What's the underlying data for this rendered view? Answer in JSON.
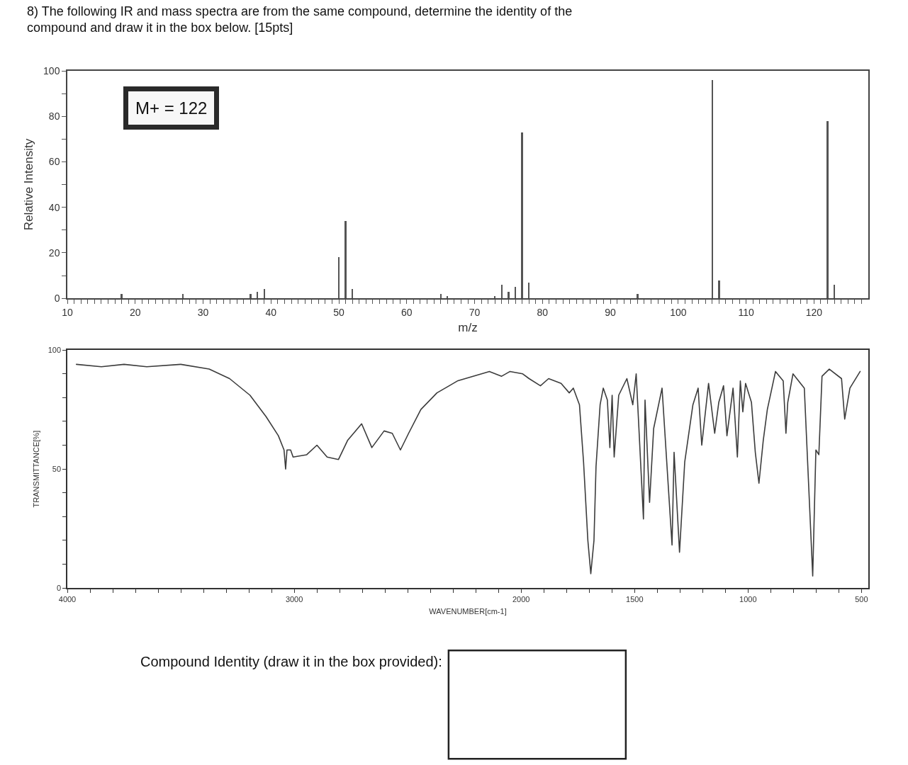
{
  "chart_data": [
    {
      "type": "bar",
      "title": "8) The following IR and mass spectra are from the same compound, determine the identity of the compound and draw it in the box below. [15pts]",
      "xlabel": "m/z",
      "ylabel": "Relative Intensity",
      "annotations": [
        "M+ = 122"
      ],
      "color": "#555555",
      "x": [
        18,
        27,
        37,
        38,
        39,
        50,
        51,
        52,
        65,
        66,
        73,
        74,
        75,
        76,
        77,
        78,
        94,
        105,
        106,
        122,
        123
      ],
      "values": [
        2,
        2,
        2,
        3,
        4,
        18,
        34,
        4,
        2,
        1,
        1,
        6,
        3,
        5,
        73,
        7,
        2,
        96,
        8,
        78,
        6
      ],
      "xlim": [
        10,
        128
      ],
      "xticks": [
        10,
        {
          "value": 11,
          "label": null
        },
        {
          "value": 12,
          "label": null
        },
        {
          "value": 13,
          "label": null
        },
        {
          "value": 14,
          "label": null
        },
        {
          "value": 15,
          "label": null
        },
        {
          "value": 16,
          "label": null
        },
        {
          "value": 17,
          "label": null
        },
        {
          "value": 18,
          "label": null
        },
        {
          "value": 19,
          "label": null
        },
        20,
        {
          "value": 21,
          "label": null
        },
        {
          "value": 22,
          "label": null
        },
        {
          "value": 23,
          "label": null
        },
        {
          "value": 24,
          "label": null
        },
        {
          "value": 25,
          "label": null
        },
        {
          "value": 26,
          "label": null
        },
        {
          "value": 27,
          "label": null
        },
        {
          "value": 28,
          "label": null
        },
        {
          "value": 29,
          "label": null
        },
        30,
        {
          "value": 31,
          "label": null
        },
        {
          "value": 32,
          "label": null
        },
        {
          "value": 33,
          "label": null
        },
        {
          "value": 34,
          "label": null
        },
        {
          "value": 35,
          "label": null
        },
        {
          "value": 36,
          "label": null
        },
        {
          "value": 37,
          "label": null
        },
        {
          "value": 38,
          "label": null
        },
        {
          "value": 39,
          "label": null
        },
        40,
        {
          "value": 41,
          "label": null
        },
        {
          "value": 42,
          "label": null
        },
        {
          "value": 43,
          "label": null
        },
        {
          "value": 44,
          "label": null
        },
        {
          "value": 45,
          "label": null
        },
        {
          "value": 46,
          "label": null
        },
        {
          "value": 47,
          "label": null
        },
        {
          "value": 48,
          "label": null
        },
        {
          "value": 49,
          "label": null
        },
        50,
        {
          "value": 51,
          "label": null
        },
        {
          "value": 52,
          "label": null
        },
        {
          "value": 53,
          "label": null
        },
        {
          "value": 54,
          "label": null
        },
        {
          "value": 55,
          "label": null
        },
        {
          "value": 56,
          "label": null
        },
        {
          "value": 57,
          "label": null
        },
        {
          "value": 58,
          "label": null
        },
        {
          "value": 59,
          "label": null
        },
        60,
        {
          "value": 61,
          "label": null
        },
        {
          "value": 62,
          "label": null
        },
        {
          "value": 63,
          "label": null
        },
        {
          "value": 64,
          "label": null
        },
        {
          "value": 65,
          "label": null
        },
        {
          "value": 66,
          "label": null
        },
        {
          "value": 67,
          "label": null
        },
        {
          "value": 68,
          "label": null
        },
        {
          "value": 69,
          "label": null
        },
        70,
        {
          "value": 71,
          "label": null
        },
        {
          "value": 72,
          "label": null
        },
        {
          "value": 73,
          "label": null
        },
        {
          "value": 74,
          "label": null
        },
        {
          "value": 75,
          "label": null
        },
        {
          "value": 76,
          "label": null
        },
        {
          "value": 77,
          "label": null
        },
        {
          "value": 78,
          "label": null
        },
        {
          "value": 79,
          "label": null
        },
        80,
        {
          "value": 81,
          "label": null
        },
        {
          "value": 82,
          "label": null
        },
        {
          "value": 83,
          "label": null
        },
        {
          "value": 84,
          "label": null
        },
        {
          "value": 85,
          "label": null
        },
        {
          "value": 86,
          "label": null
        },
        {
          "value": 87,
          "label": null
        },
        {
          "value": 88,
          "label": null
        },
        {
          "value": 89,
          "label": null
        },
        90,
        {
          "value": 91,
          "label": null
        },
        {
          "value": 92,
          "label": null
        },
        {
          "value": 93,
          "label": null
        },
        {
          "value": 94,
          "label": null
        },
        {
          "value": 95,
          "label": null
        },
        {
          "value": 96,
          "label": null
        },
        {
          "value": 97,
          "label": null
        },
        {
          "value": 98,
          "label": null
        },
        {
          "value": 99,
          "label": null
        },
        100,
        {
          "value": 101,
          "label": null
        },
        {
          "value": 102,
          "label": null
        },
        {
          "value": 103,
          "label": null
        },
        {
          "value": 104,
          "label": null
        },
        {
          "value": 105,
          "label": null
        },
        {
          "value": 106,
          "label": null
        },
        {
          "value": 107,
          "label": null
        },
        {
          "value": 108,
          "label": null
        },
        {
          "value": 109,
          "label": null
        },
        110,
        {
          "value": 111,
          "label": null
        },
        {
          "value": 112,
          "label": null
        },
        {
          "value": 113,
          "label": null
        },
        {
          "value": 114,
          "label": null
        },
        {
          "value": 115,
          "label": null
        },
        {
          "value": 116,
          "label": null
        },
        {
          "value": 117,
          "label": null
        },
        {
          "value": 118,
          "label": null
        },
        {
          "value": 119,
          "label": null
        },
        120,
        {
          "value": 121,
          "label": null
        },
        {
          "value": 122,
          "label": null
        },
        {
          "value": 123,
          "label": null
        },
        {
          "value": 124,
          "label": null
        },
        {
          "value": 125,
          "label": null
        },
        {
          "value": 126,
          "label": null
        },
        {
          "value": 127,
          "label": null
        }
      ],
      "ylim": [
        0,
        100
      ],
      "yticks": [
        0,
        {
          "value": 10,
          "label": null
        },
        20,
        {
          "value": 30,
          "label": null
        },
        40,
        {
          "value": 50,
          "label": null
        },
        60,
        {
          "value": 70,
          "label": null
        },
        80,
        {
          "value": 90,
          "label": null
        },
        100
      ]
    },
    {
      "type": "line",
      "xlabel": "WAVENUMBER[cm-1]",
      "ylabel": "TRANSMITTANCE[%]",
      "annotations": [
        "Compound Identity (draw it in the box provided):"
      ],
      "color": "#3c3c3c",
      "x": [
        3960,
        3850,
        3750,
        3650,
        3500,
        3375,
        3285,
        3195,
        3124,
        3070,
        3045,
        3038,
        3032,
        3016,
        3005,
        2945,
        2900,
        2855,
        2805,
        2765,
        2703,
        2658,
        2604,
        2568,
        2532,
        2496,
        2442,
        2371,
        2317,
        2281,
        2140,
        2086,
        2049,
        1993,
        1965,
        1915,
        1879,
        1824,
        1788,
        1770,
        1743,
        1725,
        1706,
        1693,
        1679,
        1670,
        1652,
        1638,
        1620,
        1609,
        1599,
        1590,
        1570,
        1534,
        1508,
        1493,
        1461,
        1454,
        1434,
        1416,
        1379,
        1335,
        1326,
        1302,
        1279,
        1243,
        1220,
        1204,
        1174,
        1147,
        1129,
        1108,
        1093,
        1066,
        1047,
        1034,
        1023,
        1011,
        985,
        968,
        952,
        933,
        915,
        879,
        845,
        833,
        825,
        802,
        752,
        715,
        701,
        688,
        674,
        642,
        588,
        574,
        551,
        506
      ],
      "values": [
        94,
        93,
        94,
        93,
        94,
        92,
        88,
        81,
        72,
        64,
        58,
        50,
        58,
        58,
        55,
        56,
        60,
        55,
        54,
        62,
        69,
        59,
        66,
        65,
        58,
        65,
        75,
        82,
        85,
        87,
        91,
        89,
        91,
        90,
        88,
        85,
        88,
        86,
        82,
        84,
        77,
        53,
        20,
        6,
        20,
        51,
        77,
        84,
        79,
        59,
        81,
        55,
        81,
        88,
        77,
        90,
        29,
        79,
        36,
        67,
        84,
        18,
        57,
        15,
        53,
        77,
        84,
        60,
        86,
        65,
        78,
        85,
        64,
        84,
        55,
        87,
        74,
        86,
        78,
        57,
        44,
        62,
        75,
        91,
        87,
        65,
        78,
        90,
        84,
        5,
        58,
        56,
        89,
        92,
        88,
        71,
        84,
        91
      ],
      "xlim": [
        4000,
        470
      ],
      "xticks": [
        4000,
        {
          "value": 3900,
          "label": null
        },
        {
          "value": 3800,
          "label": null
        },
        {
          "value": 3700,
          "label": null
        },
        {
          "value": 3600,
          "label": null
        },
        {
          "value": 3500,
          "label": null
        },
        {
          "value": 3400,
          "label": null
        },
        {
          "value": 3300,
          "label": null
        },
        {
          "value": 3200,
          "label": null
        },
        {
          "value": 3100,
          "label": null
        },
        3000,
        {
          "value": 2900,
          "label": null
        },
        {
          "value": 2800,
          "label": null
        },
        {
          "value": 2700,
          "label": null
        },
        {
          "value": 2600,
          "label": null
        },
        {
          "value": 2500,
          "label": null
        },
        {
          "value": 2400,
          "label": null
        },
        {
          "value": 2300,
          "label": null
        },
        {
          "value": 2200,
          "label": null
        },
        {
          "value": 2100,
          "label": null
        },
        2000,
        {
          "value": 1900,
          "label": null
        },
        {
          "value": 1800,
          "label": null
        },
        {
          "value": 1700,
          "label": null
        },
        {
          "value": 1600,
          "label": null
        },
        1500,
        {
          "value": 1400,
          "label": null
        },
        {
          "value": 1300,
          "label": null
        },
        {
          "value": 1200,
          "label": null
        },
        {
          "value": 1100,
          "label": null
        },
        1000,
        {
          "value": 900,
          "label": null
        },
        {
          "value": 800,
          "label": null
        },
        {
          "value": 700,
          "label": null
        },
        {
          "value": 600,
          "label": null
        },
        500
      ],
      "ylim": [
        0,
        100
      ],
      "yticks": [
        0,
        {
          "value": 10,
          "label": null
        },
        {
          "value": 20,
          "label": null
        },
        {
          "value": 30,
          "label": null
        },
        {
          "value": 40,
          "label": null
        },
        50,
        {
          "value": 60,
          "label": null
        },
        {
          "value": 70,
          "label": null
        },
        {
          "value": 80,
          "label": null
        },
        {
          "value": 90,
          "label": null
        },
        100
      ]
    }
  ]
}
